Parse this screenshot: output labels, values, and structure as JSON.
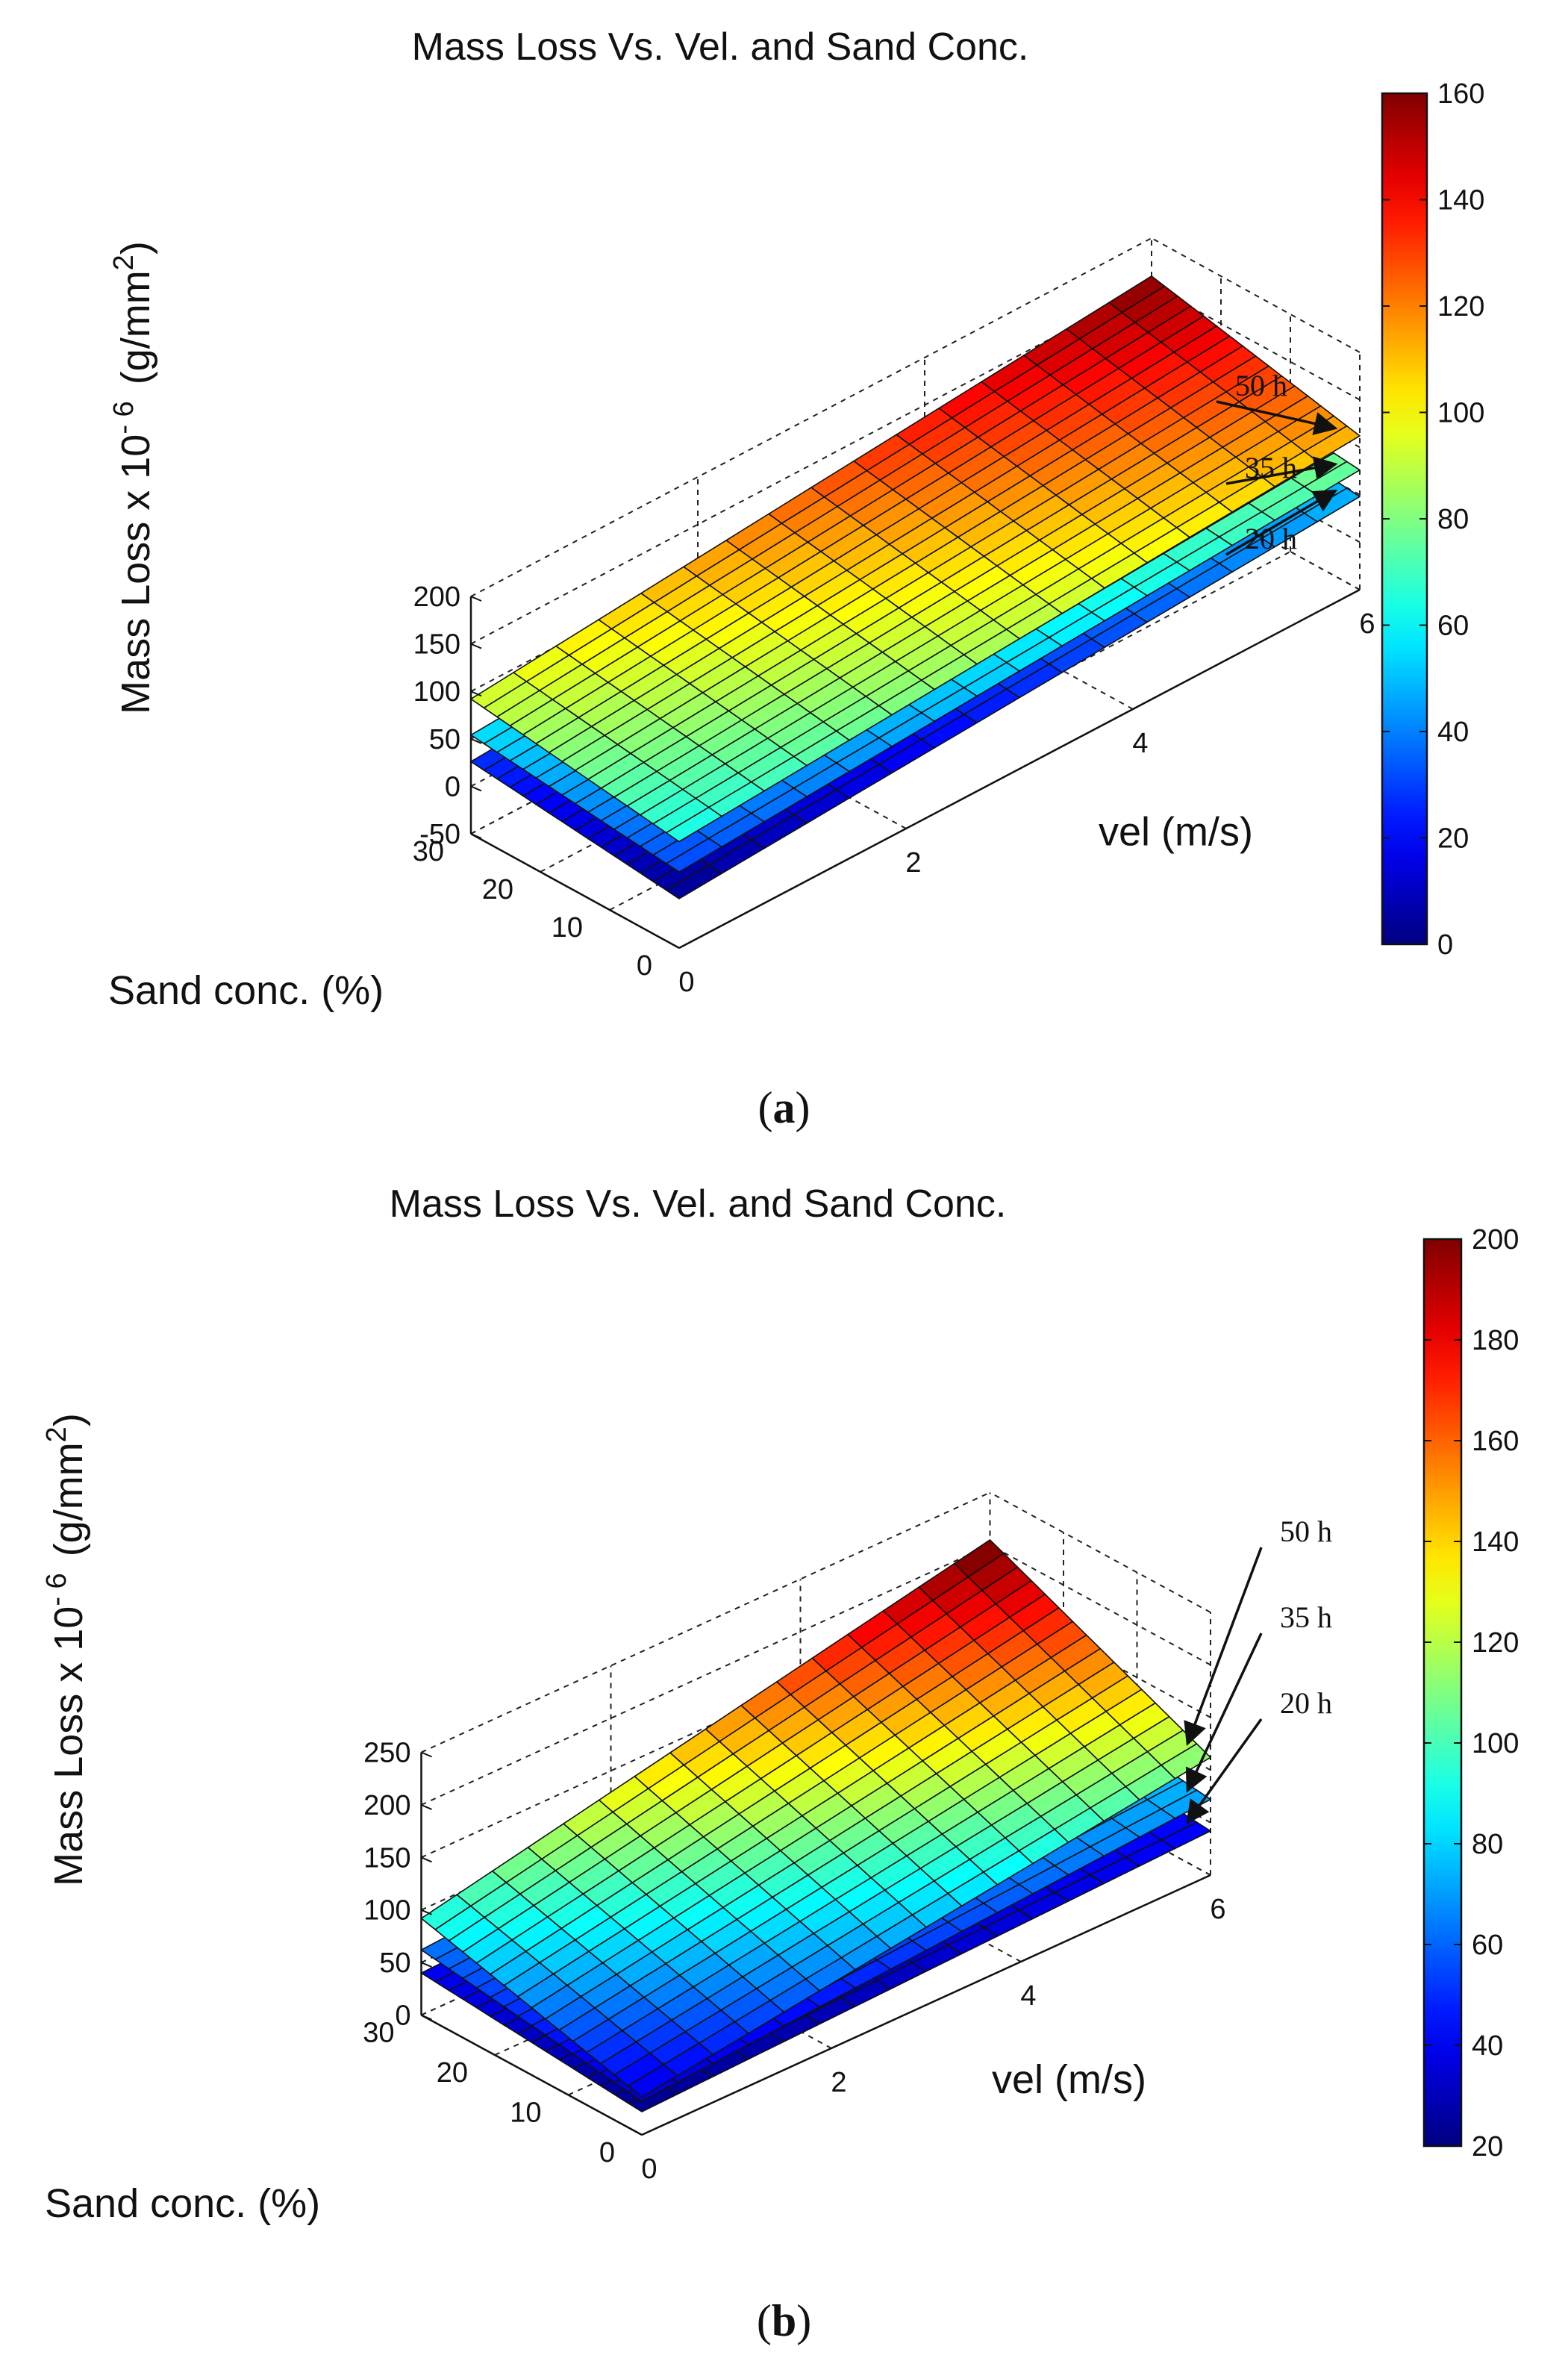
{
  "chart_data": [
    {
      "type": "surface",
      "panel_label": "a",
      "title": "Mass Loss Vs. Vel. and Sand Conc.",
      "zlabel": "Mass Loss x 10",
      "zlabel_exponent": "- 6",
      "zlabel_unit": "(g/mm",
      "zlabel_unit_sup": "2",
      "zlabel_unit_end": ")",
      "xlabel": "vel (m/s)",
      "ylabel": "Sand conc. (%)",
      "xlim": [
        0,
        6
      ],
      "ylim": [
        0,
        30
      ],
      "zlim": [
        -50,
        200
      ],
      "xticks": [
        "0",
        "2",
        "4",
        "6"
      ],
      "yticks": [
        "0",
        "10",
        "20",
        "30"
      ],
      "zticks": [
        "-50",
        "0",
        "50",
        "100",
        "150",
        "200"
      ],
      "colorbar": {
        "min": 0,
        "max": 160,
        "ticks": [
          "0",
          "20",
          "40",
          "60",
          "80",
          "100",
          "120",
          "140",
          "160"
        ]
      },
      "colormap": "jet",
      "series": [
        {
          "name": "20 h",
          "corners": {
            "x0y0": 2,
            "x6y0": 48,
            "x0y30": 26,
            "x6y30": 72
          }
        },
        {
          "name": "35 h",
          "corners": {
            "x0y0": 30,
            "x6y0": 76,
            "x0y30": 54,
            "x6y30": 100
          }
        },
        {
          "name": "50 h",
          "corners": {
            "x0y0": 62,
            "x6y0": 112,
            "x0y30": 92,
            "x6y30": 160
          }
        }
      ],
      "annotations": [
        "50 h",
        "35 h",
        "20 h"
      ]
    },
    {
      "type": "surface",
      "panel_label": "b",
      "title": "Mass Loss Vs. Vel. and Sand Conc.",
      "zlabel": "Mass Loss x 10",
      "zlabel_exponent": "- 6",
      "zlabel_unit": "(g/mm",
      "zlabel_unit_sup": "2",
      "zlabel_unit_end": ")",
      "xlabel": "vel (m/s)",
      "ylabel": "Sand conc. (%)",
      "xlim": [
        0,
        6
      ],
      "ylim": [
        0,
        30
      ],
      "zlim": [
        0,
        250
      ],
      "xticks": [
        "0",
        "2",
        "4",
        "6"
      ],
      "yticks": [
        "0",
        "10",
        "20",
        "30"
      ],
      "zticks": [
        "0",
        "50",
        "100",
        "150",
        "200",
        "250"
      ],
      "colorbar": {
        "min": 20,
        "max": 200,
        "ticks": [
          "20",
          "40",
          "60",
          "80",
          "100",
          "120",
          "140",
          "160",
          "180",
          "200"
        ]
      },
      "colormap": "jet",
      "series": [
        {
          "name": "20 h",
          "corners": {
            "x0y0": 22,
            "x6y0": 42,
            "x0y30": 40,
            "x6y30": 62
          }
        },
        {
          "name": "35 h",
          "corners": {
            "x0y0": 32,
            "x6y0": 72,
            "x0y30": 62,
            "x6y30": 100
          }
        },
        {
          "name": "50 h",
          "corners": {
            "x0y0": 36,
            "x6y0": 112,
            "x0y30": 92,
            "x6y30": 205
          }
        }
      ],
      "annotations": [
        "50 h",
        "35 h",
        "20 h"
      ]
    }
  ],
  "captions": {
    "a_open": "(",
    "a_label": "a",
    "a_close": ")",
    "b_open": "(",
    "b_label": "b",
    "b_close": ")"
  }
}
